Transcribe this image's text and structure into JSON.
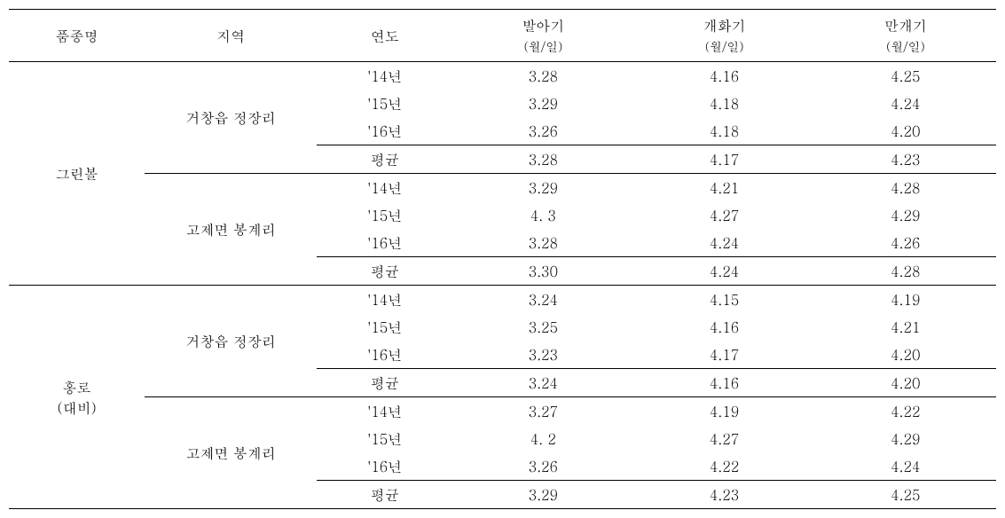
{
  "table": {
    "headers": {
      "variety": "품종명",
      "region": "지역",
      "year": "연도",
      "sprout": "발아기",
      "sprout_sub": "(월/일)",
      "flower": "개화기",
      "flower_sub": "(월/일)",
      "bloom": "만개기",
      "bloom_sub": "(월/일)"
    },
    "varieties": [
      {
        "name": "그린볼",
        "regions": [
          {
            "name": "거창읍 정장리",
            "rows": [
              {
                "year": "'14년",
                "sprout": "3.28",
                "flower": "4.16",
                "bloom": "4.25"
              },
              {
                "year": "'15년",
                "sprout": "3.29",
                "flower": "4.18",
                "bloom": "4.24"
              },
              {
                "year": "'16년",
                "sprout": "3.26",
                "flower": "4.18",
                "bloom": "4.20"
              },
              {
                "year": "평균",
                "sprout": "3.28",
                "flower": "4.17",
                "bloom": "4.23"
              }
            ]
          },
          {
            "name": "고제면 봉계리",
            "rows": [
              {
                "year": "'14년",
                "sprout": "3.29",
                "flower": "4.21",
                "bloom": "4.28"
              },
              {
                "year": "'15년",
                "sprout": "4. 3",
                "flower": "4.27",
                "bloom": "4.29"
              },
              {
                "year": "'16년",
                "sprout": "3.28",
                "flower": "4.24",
                "bloom": "4.26"
              },
              {
                "year": "평균",
                "sprout": "3.30",
                "flower": "4.24",
                "bloom": "4.28"
              }
            ]
          }
        ]
      },
      {
        "name": "홍로\n(대비)",
        "regions": [
          {
            "name": "거창읍 정장리",
            "rows": [
              {
                "year": "'14년",
                "sprout": "3.24",
                "flower": "4.15",
                "bloom": "4.19"
              },
              {
                "year": "'15년",
                "sprout": "3.25",
                "flower": "4.16",
                "bloom": "4.21"
              },
              {
                "year": "'16년",
                "sprout": "3.23",
                "flower": "4.17",
                "bloom": "4.20"
              },
              {
                "year": "평균",
                "sprout": "3.24",
                "flower": "4.16",
                "bloom": "4.20"
              }
            ]
          },
          {
            "name": "고제면 봉계리",
            "rows": [
              {
                "year": "'14년",
                "sprout": "3.27",
                "flower": "4.19",
                "bloom": "4.22"
              },
              {
                "year": "'15년",
                "sprout": "4. 2",
                "flower": "4.27",
                "bloom": "4.29"
              },
              {
                "year": "'16년",
                "sprout": "3.26",
                "flower": "4.22",
                "bloom": "4.24"
              },
              {
                "year": "평균",
                "sprout": "3.29",
                "flower": "4.23",
                "bloom": "4.25"
              }
            ]
          }
        ]
      }
    ],
    "styling": {
      "border_color": "#000000",
      "background_color": "#ffffff",
      "text_color": "#000000",
      "header_fontsize": 16,
      "cell_fontsize": 16,
      "sub_fontsize": 14,
      "thick_border_width": 1.5,
      "thin_border_width": 1,
      "col_widths": {
        "variety": 150,
        "region": 190,
        "year": 150,
        "data": 200
      }
    }
  }
}
